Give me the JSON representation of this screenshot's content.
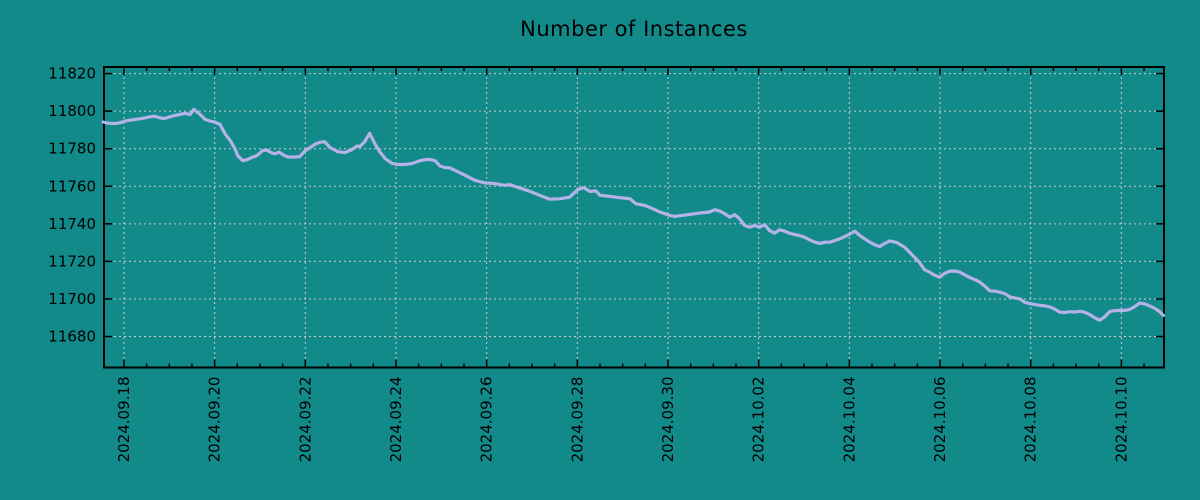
{
  "title": "Number of Instances",
  "colors": {
    "background": "#138a8a",
    "line": "#b5b2e8",
    "grid": "#cccccc",
    "axis": "#000000",
    "text": "#000000"
  },
  "chart_data": {
    "type": "line",
    "title": "Number of Instances",
    "grid": true,
    "legend": "none",
    "x_unit": "days since 2024-09-18",
    "xlim": [
      -0.44,
      22.94
    ],
    "ylim": [
      11663.5,
      11823.5
    ],
    "y_ticks": [
      11680,
      11700,
      11720,
      11740,
      11760,
      11780,
      11800,
      11820
    ],
    "x_tick_days": [
      0,
      2,
      4,
      6,
      8,
      10,
      12,
      14,
      16,
      18,
      20,
      22
    ],
    "x_tick_labels": [
      "2024.09.18",
      "2024.09.20",
      "2024.09.22",
      "2024.09.24",
      "2024.09.26",
      "2024.09.28",
      "2024.09.30",
      "2024.10.02",
      "2024.10.04",
      "2024.10.06",
      "2024.10.08",
      "2024.10.10"
    ],
    "x_minor_step_days": 0.5,
    "series": [
      {
        "name": "instances",
        "points": [
          [
            -0.46,
            11794.2
          ],
          [
            -0.35,
            11793.6
          ],
          [
            -0.2,
            11793.4
          ],
          [
            -0.09,
            11793.8
          ],
          [
            0.02,
            11794.7
          ],
          [
            0.13,
            11795.2
          ],
          [
            0.24,
            11795.6
          ],
          [
            0.35,
            11795.9
          ],
          [
            0.46,
            11796.4
          ],
          [
            0.57,
            11797.0
          ],
          [
            0.68,
            11797.3
          ],
          [
            0.79,
            11796.4
          ],
          [
            0.9,
            11796.1
          ],
          [
            1.01,
            11797.0
          ],
          [
            1.12,
            11797.7
          ],
          [
            1.23,
            11798.2
          ],
          [
            1.35,
            11798.8
          ],
          [
            1.46,
            11798.2
          ],
          [
            1.54,
            11800.9
          ],
          [
            1.68,
            11798.2
          ],
          [
            1.79,
            11795.6
          ],
          [
            1.9,
            11794.7
          ],
          [
            2.01,
            11794.1
          ],
          [
            2.12,
            11792.9
          ],
          [
            2.23,
            11787.9
          ],
          [
            2.34,
            11784.5
          ],
          [
            2.45,
            11780.0
          ],
          [
            2.51,
            11776.3
          ],
          [
            2.62,
            11773.6
          ],
          [
            2.73,
            11774.3
          ],
          [
            2.84,
            11775.5
          ],
          [
            2.93,
            11776.3
          ],
          [
            3.06,
            11779.0
          ],
          [
            3.15,
            11779.3
          ],
          [
            3.24,
            11778.0
          ],
          [
            3.33,
            11777.3
          ],
          [
            3.42,
            11778.2
          ],
          [
            3.53,
            11776.5
          ],
          [
            3.62,
            11775.6
          ],
          [
            3.77,
            11775.6
          ],
          [
            3.88,
            11775.8
          ],
          [
            3.99,
            11778.8
          ],
          [
            4.1,
            11780.5
          ],
          [
            4.21,
            11782.3
          ],
          [
            4.32,
            11783.4
          ],
          [
            4.43,
            11783.7
          ],
          [
            4.54,
            11780.7
          ],
          [
            4.63,
            11779.5
          ],
          [
            4.72,
            11778.4
          ],
          [
            4.87,
            11777.9
          ],
          [
            5.01,
            11779.3
          ],
          [
            5.14,
            11781.4
          ],
          [
            5.2,
            11781.1
          ],
          [
            5.31,
            11783.7
          ],
          [
            5.42,
            11788.2
          ],
          [
            5.53,
            11782.8
          ],
          [
            5.64,
            11778.4
          ],
          [
            5.76,
            11774.8
          ],
          [
            5.91,
            11772.2
          ],
          [
            6.02,
            11771.6
          ],
          [
            6.15,
            11771.6
          ],
          [
            6.24,
            11771.7
          ],
          [
            6.37,
            11772.2
          ],
          [
            6.53,
            11773.6
          ],
          [
            6.66,
            11774.3
          ],
          [
            6.75,
            11774.2
          ],
          [
            6.86,
            11773.6
          ],
          [
            6.97,
            11770.8
          ],
          [
            7.08,
            11770.0
          ],
          [
            7.19,
            11769.8
          ],
          [
            7.3,
            11768.5
          ],
          [
            7.52,
            11765.9
          ],
          [
            7.74,
            11763.2
          ],
          [
            7.96,
            11761.8
          ],
          [
            8.18,
            11761.4
          ],
          [
            8.4,
            11760.5
          ],
          [
            8.51,
            11760.9
          ],
          [
            8.73,
            11759.1
          ],
          [
            8.95,
            11757.3
          ],
          [
            9.17,
            11755.2
          ],
          [
            9.39,
            11753.1
          ],
          [
            9.61,
            11753.3
          ],
          [
            9.83,
            11754.2
          ],
          [
            10.01,
            11758.2
          ],
          [
            10.14,
            11759.3
          ],
          [
            10.28,
            11757.2
          ],
          [
            10.41,
            11757.6
          ],
          [
            10.5,
            11755.2
          ],
          [
            10.72,
            11754.6
          ],
          [
            10.94,
            11753.9
          ],
          [
            11.16,
            11753.4
          ],
          [
            11.29,
            11750.7
          ],
          [
            11.49,
            11749.8
          ],
          [
            11.71,
            11747.5
          ],
          [
            11.82,
            11746.3
          ],
          [
            11.93,
            11745.4
          ],
          [
            12.04,
            11744.5
          ],
          [
            12.15,
            11743.9
          ],
          [
            12.26,
            11744.3
          ],
          [
            12.48,
            11745.0
          ],
          [
            12.7,
            11745.7
          ],
          [
            12.92,
            11746.3
          ],
          [
            13.03,
            11747.5
          ],
          [
            13.14,
            11746.8
          ],
          [
            13.25,
            11745.4
          ],
          [
            13.36,
            11743.6
          ],
          [
            13.47,
            11744.8
          ],
          [
            13.58,
            11742.7
          ],
          [
            13.69,
            11739.1
          ],
          [
            13.8,
            11738.2
          ],
          [
            13.91,
            11739.1
          ],
          [
            14.02,
            11738.2
          ],
          [
            14.13,
            11739.6
          ],
          [
            14.24,
            11736.4
          ],
          [
            14.35,
            11735.0
          ],
          [
            14.46,
            11736.8
          ],
          [
            14.57,
            11736.1
          ],
          [
            14.68,
            11735.0
          ],
          [
            14.79,
            11734.3
          ],
          [
            14.9,
            11733.8
          ],
          [
            15.01,
            11732.9
          ],
          [
            15.13,
            11731.4
          ],
          [
            15.24,
            11730.2
          ],
          [
            15.35,
            11729.6
          ],
          [
            15.46,
            11730.2
          ],
          [
            15.57,
            11730.2
          ],
          [
            15.68,
            11731.1
          ],
          [
            15.79,
            11732.0
          ],
          [
            15.9,
            11733.2
          ],
          [
            16.01,
            11734.6
          ],
          [
            16.12,
            11736.1
          ],
          [
            16.23,
            11733.8
          ],
          [
            16.34,
            11732.0
          ],
          [
            16.45,
            11730.2
          ],
          [
            16.56,
            11728.9
          ],
          [
            16.67,
            11727.9
          ],
          [
            16.78,
            11729.6
          ],
          [
            16.89,
            11730.9
          ],
          [
            17.04,
            11730.1
          ],
          [
            17.22,
            11727.5
          ],
          [
            17.33,
            11724.8
          ],
          [
            17.44,
            11722.1
          ],
          [
            17.55,
            11719.3
          ],
          [
            17.66,
            11715.5
          ],
          [
            17.77,
            11714.3
          ],
          [
            17.88,
            11712.6
          ],
          [
            17.99,
            11711.6
          ],
          [
            18.1,
            11713.6
          ],
          [
            18.21,
            11714.8
          ],
          [
            18.32,
            11714.9
          ],
          [
            18.43,
            11714.4
          ],
          [
            18.54,
            11712.9
          ],
          [
            18.65,
            11711.5
          ],
          [
            18.77,
            11710.3
          ],
          [
            18.88,
            11708.9
          ],
          [
            18.99,
            11706.8
          ],
          [
            19.1,
            11704.3
          ],
          [
            19.21,
            11704.1
          ],
          [
            19.32,
            11703.6
          ],
          [
            19.43,
            11702.8
          ],
          [
            19.54,
            11701.1
          ],
          [
            19.65,
            11700.5
          ],
          [
            19.76,
            11700.0
          ],
          [
            19.87,
            11698.2
          ],
          [
            19.98,
            11697.5
          ],
          [
            20.09,
            11697.0
          ],
          [
            20.2,
            11696.6
          ],
          [
            20.31,
            11696.3
          ],
          [
            20.42,
            11695.8
          ],
          [
            20.53,
            11694.6
          ],
          [
            20.64,
            11693.0
          ],
          [
            20.75,
            11692.8
          ],
          [
            20.86,
            11693.2
          ],
          [
            20.97,
            11693.0
          ],
          [
            21.08,
            11693.4
          ],
          [
            21.19,
            11692.9
          ],
          [
            21.3,
            11691.7
          ],
          [
            21.41,
            11690.0
          ],
          [
            21.52,
            11688.7
          ],
          [
            21.63,
            11690.4
          ],
          [
            21.74,
            11693.2
          ],
          [
            21.85,
            11693.8
          ],
          [
            21.96,
            11693.9
          ],
          [
            22.07,
            11693.9
          ],
          [
            22.18,
            11694.4
          ],
          [
            22.29,
            11695.8
          ],
          [
            22.4,
            11697.8
          ],
          [
            22.51,
            11697.4
          ],
          [
            22.62,
            11696.3
          ],
          [
            22.73,
            11695.1
          ],
          [
            22.84,
            11693.3
          ],
          [
            22.93,
            11691.2
          ]
        ]
      }
    ]
  }
}
